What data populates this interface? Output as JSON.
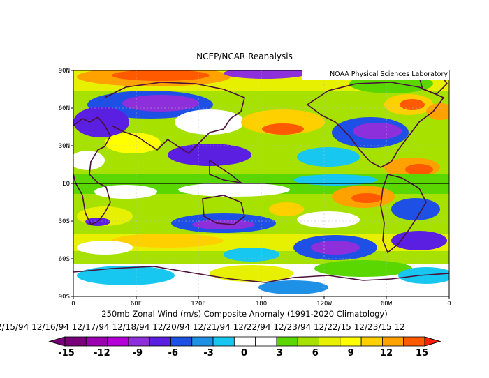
{
  "header": {
    "title": "NCEP/NCAR Reanalysis"
  },
  "watermark": "NOAA Physical Sciences Laboratory",
  "map": {
    "lat_labels": [
      "90N",
      "60N",
      "30N",
      "EQ",
      "30S",
      "60S",
      "90S"
    ],
    "lon_labels": [
      "0",
      "60E",
      "120E",
      "180",
      "120W",
      "60W",
      "0"
    ]
  },
  "caption": {
    "variable": "250mb Zonal Wind (m/s) Composite Anomaly (1991-2020 Climatology)",
    "dates": "2/15/94 12/16/94 12/17/94 12/18/94 12/20/94 12/21/94 12/22/94 12/23/94 12/22/15 12/23/15 12"
  },
  "colorbar": {
    "labels": [
      "-15",
      "-12",
      "-9",
      "-6",
      "-3",
      "0",
      "3",
      "6",
      "9",
      "12",
      "15"
    ],
    "colors": [
      "#7a007a",
      "#9a00b0",
      "#b400d6",
      "#8e2fdc",
      "#5a1fe0",
      "#1e50e6",
      "#1e90e6",
      "#18c7ef",
      "#ffffff",
      "#ffffff",
      "#5ad700",
      "#a6e100",
      "#e7f000",
      "#ffff00",
      "#ffd000",
      "#ffa200",
      "#ff5a00"
    ]
  }
}
